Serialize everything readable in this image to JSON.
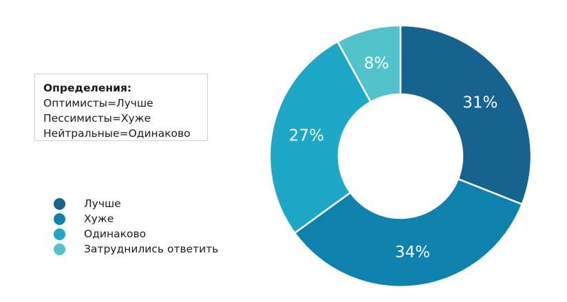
{
  "definitions": {
    "title": "Определения:",
    "lines": [
      "Оптимисты=Лучше",
      "Пессимисты=Хуже",
      "Нейтральные=Одинаково"
    ]
  },
  "chart_data": {
    "type": "pie",
    "donut": true,
    "legend_position": "left",
    "categories": [
      "Лучше",
      "Хуже",
      "Одинаково",
      "Затруднились ответить"
    ],
    "values": [
      31,
      34,
      27,
      8
    ],
    "value_labels": [
      "31%",
      "34%",
      "27%",
      "8%"
    ],
    "colors": [
      "#17638f",
      "#0f81ad",
      "#1ca8c6",
      "#52c3cc"
    ]
  }
}
